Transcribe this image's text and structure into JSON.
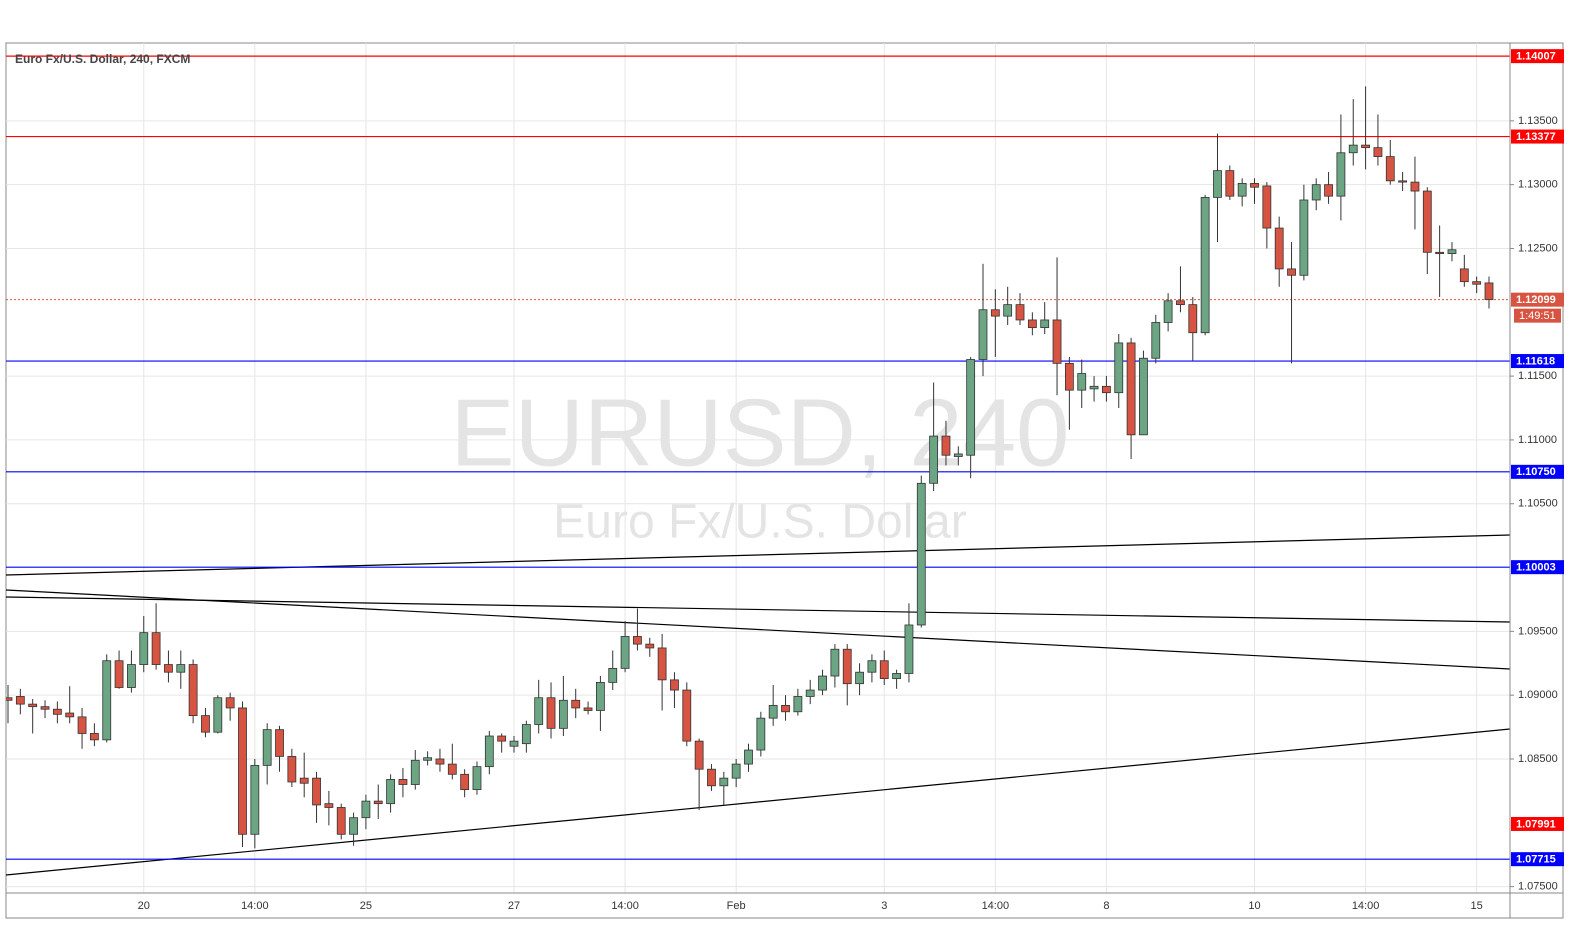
{
  "chart_data": {
    "type": "candlestick",
    "title": "Euro Fx/U.S. Dollar, 240, FXCM",
    "watermark": "EURUSD, 240",
    "watermark_subtitle": "Euro Fx/U.S. Dollar",
    "categories": [
      null,
      null,
      null,
      null,
      null,
      null,
      null,
      null,
      null,
      null,
      null,
      "20",
      null,
      null,
      null,
      null,
      null,
      null,
      null,
      null,
      "14:00",
      null,
      null,
      null,
      null,
      null,
      null,
      null,
      null,
      "25",
      null,
      null,
      null,
      null,
      null,
      null,
      null,
      null,
      null,
      null,
      null,
      "27",
      null,
      null,
      null,
      null,
      null,
      null,
      null,
      null,
      "14:00",
      null,
      null,
      null,
      null,
      null,
      null,
      null,
      null,
      "Feb",
      null,
      null,
      null,
      null,
      null,
      null,
      null,
      null,
      null,
      null,
      null,
      "3",
      null,
      null,
      null,
      null,
      null,
      null,
      null,
      null,
      "14:00",
      null,
      null,
      null,
      null,
      null,
      null,
      null,
      null,
      "8",
      null,
      null,
      null,
      null,
      null,
      null,
      null,
      null,
      null,
      null,
      null,
      "10",
      null,
      null,
      null,
      null,
      null,
      null,
      null,
      null,
      "14:00",
      null,
      null,
      null,
      null,
      null,
      null,
      null,
      null,
      "15",
      null
    ],
    "open": [
      1.0898,
      1.0899,
      1.0893,
      1.0891,
      1.0889,
      1.0886,
      1.0883,
      1.087,
      1.0865,
      1.0927,
      1.0906,
      1.0924,
      1.0949,
      1.0924,
      1.0918,
      1.0924,
      1.0884,
      1.0871,
      1.0898,
      1.089,
      1.0791,
      1.0845,
      1.0873,
      1.0852,
      1.0835,
      1.0835,
      1.0815,
      1.0812,
      1.0791,
      1.0804,
      1.0817,
      1.0815,
      1.0834,
      1.083,
      1.0849,
      1.085,
      1.0846,
      1.0838,
      1.0826,
      1.0844,
      1.0868,
      1.086,
      1.0862,
      1.0877,
      1.0898,
      1.0874,
      1.0896,
      1.089,
      1.0888,
      1.091,
      1.0921,
      1.0946,
      1.094,
      1.0937,
      1.0912,
      1.0904,
      1.0864,
      1.0842,
      1.0829,
      1.0835,
      1.0846,
      1.0857,
      1.0882,
      1.0892,
      1.0887,
      1.0899,
      1.0904,
      1.0915,
      1.0936,
      1.0909,
      1.0918,
      1.0927,
      1.0913,
      1.0917,
      1.0955,
      1.1066,
      1.1103,
      1.1087,
      1.1088,
      1.1163,
      1.1202,
      1.1197,
      1.1206,
      1.1194,
      1.1188,
      1.1194,
      1.116,
      1.1139,
      1.114,
      1.1142,
      1.1137,
      1.1176,
      1.1104,
      1.1164,
      1.1192,
      1.1209,
      1.1206,
      1.1184,
      1.129,
      1.1311,
      1.1291,
      1.1301,
      1.1299,
      1.1266,
      1.1234,
      1.1229,
      1.1288,
      1.13,
      1.1291,
      1.1325,
      1.1331,
      1.1329,
      1.1322,
      1.1303,
      1.1302,
      1.1295,
      1.1247,
      1.1246,
      1.1234,
      1.1224,
      1.1223
    ],
    "high": [
      1.0908,
      1.0905,
      1.0897,
      1.0896,
      1.0895,
      1.0907,
      1.089,
      1.0878,
      1.0932,
      1.0935,
      1.0935,
      1.0962,
      1.0972,
      1.0935,
      1.0935,
      1.0928,
      1.089,
      1.09,
      1.0902,
      1.0895,
      1.085,
      1.0878,
      1.0876,
      1.0858,
      1.0855,
      1.084,
      1.0825,
      1.0815,
      1.0808,
      1.0822,
      1.083,
      1.0838,
      1.0843,
      1.0857,
      1.0856,
      1.0858,
      1.0862,
      1.0842,
      1.0848,
      1.0872,
      1.087,
      1.0868,
      1.088,
      1.0912,
      1.091,
      1.0915,
      1.0905,
      1.0895,
      1.0915,
      1.0935,
      1.0958,
      1.0968,
      1.0945,
      1.0948,
      1.0918,
      1.091,
      1.0866,
      1.0846,
      1.084,
      1.085,
      1.0862,
      1.0887,
      1.0908,
      1.09,
      1.0905,
      1.0912,
      1.092,
      1.094,
      1.094,
      1.0925,
      1.0932,
      1.0935,
      1.092,
      1.0972,
      1.1072,
      1.1145,
      1.1115,
      1.1095,
      1.1165,
      1.1238,
      1.1218,
      1.122,
      1.1215,
      1.12,
      1.1208,
      1.1243,
      1.1165,
      1.1163,
      1.115,
      1.115,
      1.1183,
      1.118,
      1.117,
      1.1198,
      1.1215,
      1.1236,
      1.1212,
      1.1292,
      1.134,
      1.1315,
      1.1305,
      1.1305,
      1.1302,
      1.1275,
      1.1255,
      1.13,
      1.1305,
      1.131,
      1.1355,
      1.1367,
      1.1377,
      1.1355,
      1.1335,
      1.131,
      1.1322,
      1.1298,
      1.1268,
      1.1255,
      1.1245,
      1.1228,
      1.1228
    ],
    "low": [
      1.0878,
      1.0885,
      1.087,
      1.0882,
      1.0878,
      1.0878,
      1.0858,
      1.086,
      1.0863,
      1.0905,
      1.0902,
      1.0918,
      1.092,
      1.091,
      1.0905,
      1.0878,
      1.0867,
      1.087,
      1.088,
      1.0781,
      1.078,
      1.083,
      1.084,
      1.0828,
      1.082,
      1.08,
      1.0798,
      1.0787,
      1.0782,
      1.0795,
      1.0803,
      1.0808,
      1.082,
      1.0826,
      1.0845,
      1.084,
      1.0834,
      1.082,
      1.0822,
      1.0838,
      1.0855,
      1.0855,
      1.0855,
      1.087,
      1.0866,
      1.0868,
      1.0882,
      1.0885,
      1.0872,
      1.0904,
      1.0918,
      1.0935,
      1.093,
      1.0888,
      1.089,
      1.086,
      1.081,
      1.0825,
      1.0814,
      1.0828,
      1.084,
      1.0852,
      1.0876,
      1.088,
      1.0884,
      1.0893,
      1.09,
      1.0906,
      1.0892,
      1.09,
      1.091,
      1.0908,
      1.0905,
      1.091,
      1.0953,
      1.106,
      1.108,
      1.108,
      1.107,
      1.115,
      1.1165,
      1.119,
      1.119,
      1.1182,
      1.1183,
      1.1135,
      1.1108,
      1.1125,
      1.113,
      1.113,
      1.1125,
      1.1085,
      1.1104,
      1.116,
      1.1185,
      1.12,
      1.1162,
      1.1182,
      1.1255,
      1.1288,
      1.1283,
      1.1285,
      1.125,
      1.122,
      1.116,
      1.1225,
      1.128,
      1.1285,
      1.1272,
      1.1315,
      1.1312,
      1.1315,
      1.13,
      1.1295,
      1.1265,
      1.123,
      1.1212,
      1.124,
      1.122,
      1.1215,
      1.1203
    ],
    "close": [
      1.0896,
      1.0893,
      1.0891,
      1.0889,
      1.0885,
      1.0883,
      1.087,
      1.0865,
      1.0927,
      1.0906,
      1.0924,
      1.0949,
      1.0924,
      1.0918,
      1.0924,
      1.0884,
      1.0871,
      1.0898,
      1.089,
      1.0791,
      1.0845,
      1.0873,
      1.0852,
      1.0832,
      1.0831,
      1.0814,
      1.0812,
      1.0791,
      1.0804,
      1.0817,
      1.0815,
      1.0834,
      1.083,
      1.0849,
      1.0851,
      1.0846,
      1.0838,
      1.0826,
      1.0844,
      1.0868,
      1.0864,
      1.0864,
      1.0877,
      1.0898,
      1.0874,
      1.0896,
      1.089,
      1.0888,
      1.091,
      1.0921,
      1.0946,
      1.094,
      1.0937,
      1.0912,
      1.0904,
      1.0864,
      1.0842,
      1.0829,
      1.0835,
      1.0846,
      1.0857,
      1.0882,
      1.0892,
      1.0887,
      1.0899,
      1.0904,
      1.0915,
      1.0936,
      1.0909,
      1.0918,
      1.0927,
      1.0913,
      1.0917,
      1.0955,
      1.1066,
      1.1103,
      1.1088,
      1.1089,
      1.1163,
      1.1202,
      1.1197,
      1.1206,
      1.1194,
      1.1188,
      1.1194,
      1.116,
      1.1139,
      1.1152,
      1.1142,
      1.1137,
      1.1176,
      1.1104,
      1.1164,
      1.1192,
      1.1209,
      1.1206,
      1.1184,
      1.129,
      1.1311,
      1.1291,
      1.1301,
      1.1298,
      1.1266,
      1.1234,
      1.1229,
      1.1288,
      1.13,
      1.1291,
      1.1325,
      1.1331,
      1.1329,
      1.1322,
      1.1303,
      1.1302,
      1.1295,
      1.1247,
      1.1246,
      1.1249,
      1.1224,
      1.1222,
      1.121
    ],
    "up_color": "#6ba583",
    "down_color": "#d75442",
    "ylim": [
      1.0745,
      1.1411
    ],
    "yticks": [
      {
        "value": 1.135,
        "label": "1.13500"
      },
      {
        "value": 1.13,
        "label": "1.13000"
      },
      {
        "value": 1.125,
        "label": "1.12500"
      },
      {
        "value": 1.115,
        "label": "1.11500"
      },
      {
        "value": 1.11,
        "label": "1.11000"
      },
      {
        "value": 1.105,
        "label": "1.10500"
      },
      {
        "value": 1.095,
        "label": "1.09500"
      },
      {
        "value": 1.09,
        "label": "1.09000"
      },
      {
        "value": 1.085,
        "label": "1.08500"
      },
      {
        "value": 1.075,
        "label": "1.07500"
      }
    ],
    "grid": true,
    "levels": [
      {
        "value": 1.14007,
        "label": "1.14007",
        "color": "#ff0000"
      },
      {
        "value": 1.13377,
        "label": "1.13377",
        "color": "#ff0000"
      },
      {
        "value": 1.11618,
        "label": "1.11618",
        "color": "#0000ff"
      },
      {
        "value": 1.1075,
        "label": "1.10750",
        "color": "#0000ff"
      },
      {
        "value": 1.10003,
        "label": "1.10003",
        "color": "#0000ff"
      },
      {
        "value": 1.07715,
        "label": "1.07715",
        "color": "#0000ff"
      }
    ],
    "price_marks": [
      {
        "value": 1.07991,
        "label": "1.07991",
        "color": "#ff0000"
      }
    ],
    "current_price": {
      "value": 1.12099,
      "label": "1.12099",
      "countdown": "1:49:51",
      "color": "#d75442"
    }
  }
}
